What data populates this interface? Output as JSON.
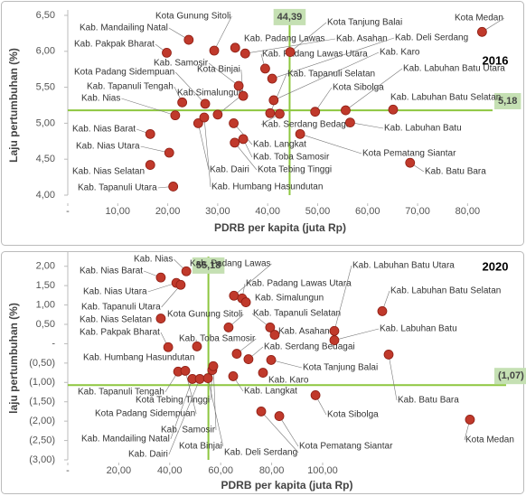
{
  "chart_data": [
    {
      "type": "scatter",
      "title": "2016",
      "x_label": "PDRB per kapita (juta Rp)",
      "y_label": "Laju pertumbuhan (%)",
      "color": "#c0392b",
      "ref_color": "#8dc63f",
      "xlim": [
        0,
        85
      ],
      "ylim": [
        4,
        6.5
      ],
      "xticks": [
        {
          "value": 0,
          "label": "-"
        },
        {
          "value": 10,
          "label": "10,00"
        },
        {
          "value": 20,
          "label": "20,00"
        },
        {
          "value": 30,
          "label": "30,00"
        },
        {
          "value": 40,
          "label": "40,00"
        },
        {
          "value": 50,
          "label": "50,00"
        },
        {
          "value": 60,
          "label": "60,00"
        },
        {
          "value": 70,
          "label": "70,00"
        },
        {
          "value": 80,
          "label": "80,00"
        }
      ],
      "yticks": [
        {
          "value": 4,
          "label": "4,00"
        },
        {
          "value": 4.5,
          "label": "4,50"
        },
        {
          "value": 5,
          "label": "5,00"
        },
        {
          "value": 5.5,
          "label": "5,50"
        },
        {
          "value": 6,
          "label": "6,00"
        },
        {
          "value": 6.5,
          "label": "6,50"
        }
      ],
      "ref_x": {
        "value": 44.39,
        "label": "44,39"
      },
      "ref_y": {
        "value": 5.18,
        "label": "5,18"
      },
      "point_labels": [
        "Kota Medan",
        "Kab. Mandailing Natal",
        "Kota Gunung Sitoli",
        "Kab. Padang Lawas",
        "Kab. Pakpak Bharat",
        "Kota Tanjung Balai",
        "Kab. Asahan",
        "Kab. Padang Lawas Utara",
        "Kab. Deli Serdang",
        "Kab. Karo",
        "Kab. Samosir",
        "Kota Binjai",
        "Kota Padang Sidempuan",
        "Kab. Tapanuli Tengah",
        "Kab. Nias",
        "Kab.Simalungun",
        "Kab. Tapanuli Selatan",
        "Kota Sibolga",
        "Kab. Labuhan Batu Utara",
        "Kab. Labuhan Batu Selatan",
        "Kab. Labuhan Batu",
        "Kab. Serdang Bedagai",
        "Kab. Nias Barat",
        "Kab. Nias Utara",
        "Kab. Nias Selatan",
        "Kab. Tapanuli Utara",
        "Kab. Dairi",
        "Kab. Humbang Hasundutan",
        "Kab. Langkat",
        "Kab. Toba Samosir",
        "Kota Tebing Tinggi",
        "Kota Pematang Siantar",
        "Kab. Batu Bara"
      ],
      "x": [
        82.9,
        24.2,
        29.3,
        33.5,
        19.8,
        44.5,
        35.5,
        39.5,
        40.9,
        41.2,
        34.2,
        35.1,
        27.5,
        22.9,
        21.5,
        30.0,
        40.5,
        49.5,
        55.6,
        65.1,
        56.5,
        42.4,
        16.5,
        20.3,
        16.5,
        21.1,
        26.1,
        27.3,
        33.2,
        35.1,
        33.4,
        46.5,
        68.5
      ],
      "values": [
        6.27,
        6.16,
        6.01,
        6.05,
        5.98,
        5.99,
        5.97,
        5.76,
        5.62,
        5.32,
        5.52,
        5.38,
        5.27,
        5.29,
        5.11,
        5.12,
        5.14,
        5.16,
        5.18,
        5.19,
        5.01,
        5.13,
        4.85,
        4.59,
        4.42,
        4.12,
        5.0,
        5.08,
        5.0,
        4.78,
        4.73,
        4.85,
        4.45
      ]
    },
    {
      "type": "scatter",
      "title": "2020",
      "x_label": "PDRB per kapita (juta Rp)",
      "y_label": "laju pertumbuhan (%)",
      "color": "#c0392b",
      "ref_color": "#8dc63f",
      "xlim": [
        0,
        172
      ],
      "ylim": [
        -3,
        2.25
      ],
      "xticks": [
        {
          "value": 0,
          "label": "-"
        },
        {
          "value": 20,
          "label": "20,00"
        },
        {
          "value": 40,
          "label": "40,00"
        },
        {
          "value": 60,
          "label": "60,00"
        },
        {
          "value": 80,
          "label": "80,00"
        },
        {
          "value": 100,
          "label": "100,00"
        }
      ],
      "yticks": [
        {
          "value": 2,
          "label": "2,00"
        },
        {
          "value": 1.5,
          "label": "1,50"
        },
        {
          "value": 1,
          "label": "1,00"
        },
        {
          "value": 0.5,
          "label": "0,50"
        },
        {
          "value": 0,
          "label": "-"
        },
        {
          "value": -0.5,
          "label": "(0,50)"
        },
        {
          "value": -1,
          "label": "(1,00)"
        },
        {
          "value": -1.5,
          "label": "(1,50)"
        },
        {
          "value": -2,
          "label": "(2,00)"
        },
        {
          "value": -2.5,
          "label": "(2,50)"
        },
        {
          "value": -3,
          "label": "(3,00)"
        }
      ],
      "ref_x": {
        "value": 55.18,
        "label": "55,18"
      },
      "ref_y": {
        "value": -1.07,
        "label": "(1,07)"
      },
      "point_labels": [
        "Kab. Nias",
        "Kab. Nias Barat",
        "Kab. Nias Utara",
        "Kab. Tapanuli Utara",
        "Kab. Padang Lawas",
        "Kab. Padang Lawas Utara",
        "Kab. Simalungun",
        "Kab. Tapanuli Selatan",
        "Kab. Labuhan Batu Utara",
        "Kab. Labuhan Batu Selatan",
        "Kab. Labuhan Batu",
        "Kab. Nias Selatan",
        "Kota Gunung Sitoli",
        "Kab. Pakpak Bharat",
        "Kab. Humbang Hasundutan",
        "Kab. Toba Samosir",
        "Kab. Asahan",
        "Kab. Serdang Bedagai",
        "Kota Tanjung Balai",
        "Kab. Karo",
        "Kab. Langkat",
        "Kota Tebing Tinggi",
        "Kab. Samosir",
        "Kab. Tapanuli Tengah",
        "Kota Padang Sidempuan",
        "Kab. Mandailing Natal",
        "Kab. Dairi",
        "Kota Binjai",
        "Kab. Deli Serdang",
        "Kota Pematang Siantar",
        "Kab. Batu Bara",
        "Kota Sibolga",
        "Kota Medan"
      ],
      "x": [
        46.5,
        36.5,
        42.6,
        44.3,
        65.2,
        68.4,
        69.9,
        79.4,
        104.6,
        123.4,
        104.6,
        36.5,
        63.1,
        39.4,
        50.7,
        66.3,
        81.2,
        70.9,
        79.8,
        76.6,
        64.9,
        56.7,
        57.1,
        43.3,
        46.1,
        48.9,
        51.8,
        55.0,
        75.9,
        83.0,
        125.9,
        97.2,
        157.8
      ],
      "values": [
        1.87,
        1.71,
        1.57,
        1.52,
        1.24,
        1.17,
        1.07,
        0.42,
        0.33,
        0.84,
        0.09,
        0.65,
        0.42,
        -0.09,
        -0.07,
        -0.26,
        0.23,
        -0.4,
        -0.42,
        -0.75,
        -0.84,
        -0.68,
        -0.58,
        -0.72,
        -0.7,
        -0.91,
        -0.91,
        -0.89,
        -1.75,
        -1.87,
        -0.28,
        -1.33,
        -1.96
      ]
    }
  ]
}
